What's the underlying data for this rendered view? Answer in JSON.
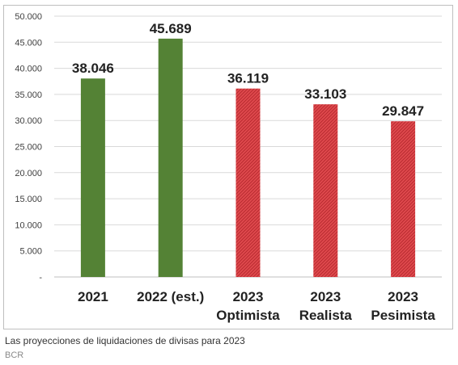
{
  "chart_data": {
    "type": "bar",
    "categories": [
      [
        "2021"
      ],
      [
        "2022 (est.)"
      ],
      [
        "2023",
        "Optimista"
      ],
      [
        "2023",
        "Realista"
      ],
      [
        "2023",
        "Pesimista"
      ]
    ],
    "values": [
      38046,
      45689,
      36119,
      33103,
      29847
    ],
    "data_labels": [
      "38.046",
      "45.689",
      "36.119",
      "33.103",
      "29.847"
    ],
    "bar_colors": [
      "#548235",
      "#548235",
      "#d9383d",
      "#d9383d",
      "#d9383d"
    ],
    "ylim": [
      0,
      50000
    ],
    "yticks": [
      0,
      5000,
      10000,
      15000,
      20000,
      25000,
      30000,
      35000,
      40000,
      45000,
      50000
    ],
    "ytick_labels": [
      "-",
      "5.000",
      "10.000",
      "15.000",
      "20.000",
      "25.000",
      "30.000",
      "35.000",
      "40.000",
      "45.000",
      "50.000"
    ],
    "grid": true,
    "title": "",
    "xlabel": "",
    "ylabel": ""
  },
  "caption": "Las proyecciones de liquidaciones de divisas para 2023",
  "credit": "BCR"
}
